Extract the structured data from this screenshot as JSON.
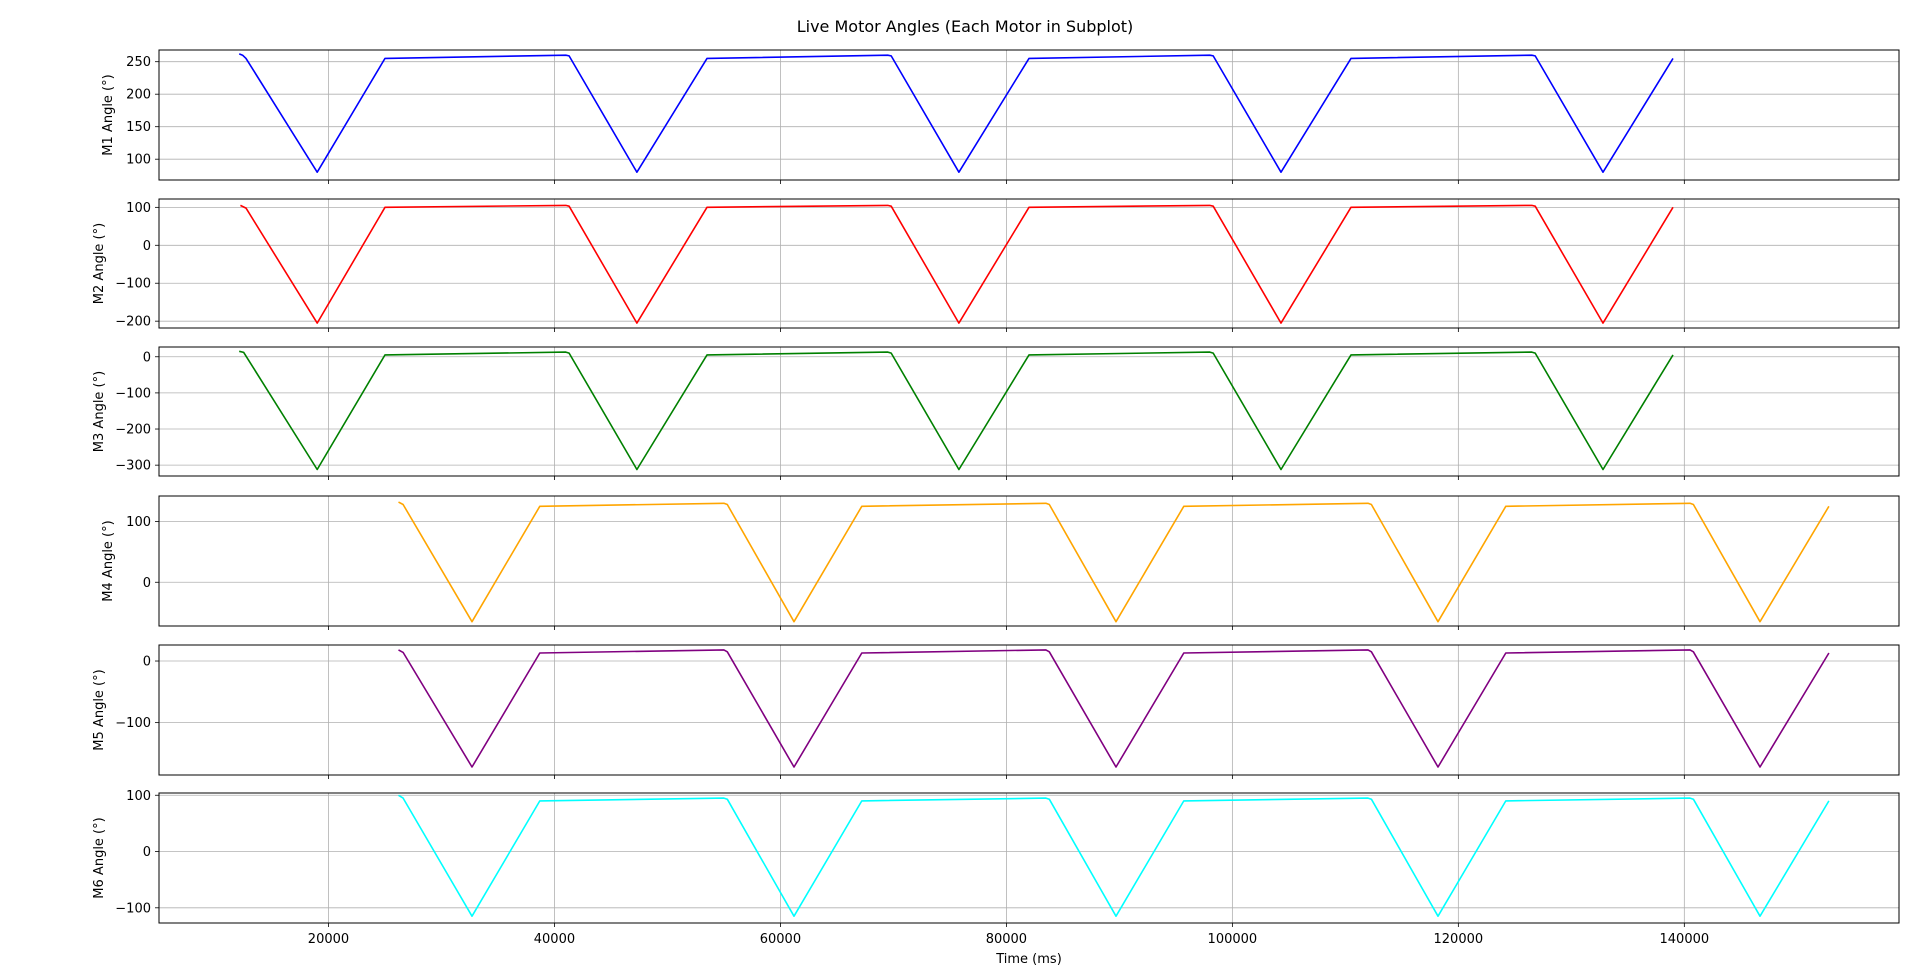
{
  "window": {
    "title": "Live Motor Angles (Each Motor in Subplot)"
  },
  "chart_data": [
    {
      "type": "line",
      "ylabel": "M1 Angle (°)",
      "xlabel": "",
      "color": "#0000ff",
      "xlim": [
        5000,
        159000
      ],
      "ylim": [
        68,
        268
      ],
      "yticks": [
        100,
        150,
        200,
        250
      ],
      "ytick_labels": [
        "100",
        "150",
        "200",
        "250"
      ],
      "xticks": [
        20000,
        40000,
        60000,
        80000,
        100000,
        120000,
        140000
      ],
      "grid": true,
      "series": [
        {
          "x": [
            12100,
            12400,
            12700,
            19000,
            25000,
            41000,
            41300,
            47300,
            53500,
            69500,
            69800,
            75800,
            82000,
            98000,
            98300,
            104300,
            110500,
            126500,
            126800,
            132800,
            139000
          ],
          "values": [
            262,
            260,
            255,
            80,
            255,
            260,
            259,
            80,
            255,
            260,
            259,
            80,
            255,
            260,
            259,
            80,
            255,
            260,
            259,
            80,
            255
          ]
        }
      ]
    },
    {
      "type": "line",
      "ylabel": "M2 Angle (°)",
      "xlabel": "",
      "color": "#ff0000",
      "xlim": [
        5000,
        159000
      ],
      "ylim": [
        -218,
        122
      ],
      "yticks": [
        -200,
        -100,
        0,
        100
      ],
      "ytick_labels": [
        "−200",
        "−100",
        "0",
        "100"
      ],
      "xticks": [
        20000,
        40000,
        60000,
        80000,
        100000,
        120000,
        140000
      ],
      "grid": true,
      "series": [
        {
          "x": [
            12200,
            12700,
            19000,
            25000,
            41000,
            41300,
            47300,
            53500,
            69500,
            69800,
            75800,
            82000,
            98000,
            98300,
            104300,
            110500,
            126500,
            126800,
            132800,
            139000
          ],
          "values": [
            105,
            98,
            -205,
            100,
            105,
            103,
            -205,
            100,
            105,
            103,
            -205,
            100,
            105,
            103,
            -205,
            100,
            105,
            103,
            -205,
            100
          ]
        }
      ]
    },
    {
      "type": "line",
      "ylabel": "M3 Angle (°)",
      "xlabel": "",
      "color": "#008000",
      "xlim": [
        5000,
        159000
      ],
      "ylim": [
        -330,
        27
      ],
      "yticks": [
        -300,
        -200,
        -100,
        0
      ],
      "ytick_labels": [
        "−300",
        "−200",
        "−100",
        "0"
      ],
      "xticks": [
        20000,
        40000,
        60000,
        80000,
        100000,
        120000,
        140000
      ],
      "grid": true,
      "series": [
        {
          "x": [
            12100,
            12500,
            19000,
            25000,
            41000,
            41300,
            47300,
            53500,
            69500,
            69800,
            75800,
            82000,
            98000,
            98300,
            104300,
            110500,
            126500,
            126800,
            132800,
            139000
          ],
          "values": [
            15,
            12,
            -312,
            5,
            13,
            10,
            -312,
            5,
            13,
            10,
            -312,
            5,
            13,
            10,
            -312,
            5,
            13,
            10,
            -312,
            5
          ]
        }
      ]
    },
    {
      "type": "line",
      "ylabel": "M4 Angle (°)",
      "xlabel": "",
      "color": "#ffa500",
      "xlim": [
        5000,
        159000
      ],
      "ylim": [
        -72,
        142
      ],
      "yticks": [
        0,
        100
      ],
      "ytick_labels": [
        "0",
        "100"
      ],
      "xticks": [
        20000,
        40000,
        60000,
        80000,
        100000,
        120000,
        140000
      ],
      "grid": true,
      "series": [
        {
          "x": [
            26200,
            26600,
            32700,
            38700,
            55000,
            55300,
            61200,
            67200,
            83500,
            83800,
            89700,
            95700,
            112000,
            112300,
            118200,
            124200,
            140500,
            140800,
            146700,
            152800
          ],
          "values": [
            132,
            128,
            -65,
            125,
            130,
            128,
            -65,
            125,
            130,
            128,
            -65,
            125,
            130,
            128,
            -65,
            125,
            130,
            128,
            -65,
            125
          ]
        }
      ]
    },
    {
      "type": "line",
      "ylabel": "M5 Angle (°)",
      "xlabel": "",
      "color": "#800080",
      "xlim": [
        5000,
        159000
      ],
      "ylim": [
        -185,
        26
      ],
      "yticks": [
        -100,
        0
      ],
      "ytick_labels": [
        "−100",
        "0"
      ],
      "xticks": [
        20000,
        40000,
        60000,
        80000,
        100000,
        120000,
        140000
      ],
      "grid": true,
      "series": [
        {
          "x": [
            26200,
            26600,
            32700,
            38700,
            55000,
            55300,
            61200,
            67200,
            83500,
            83800,
            89700,
            95700,
            112000,
            112300,
            118200,
            124200,
            140500,
            140800,
            146700,
            152800
          ],
          "values": [
            18,
            14,
            -172,
            13,
            18,
            15,
            -172,
            13,
            18,
            15,
            -172,
            13,
            18,
            15,
            -172,
            13,
            18,
            15,
            -172,
            13
          ]
        }
      ]
    },
    {
      "type": "line",
      "ylabel": "M6 Angle (°)",
      "xlabel": "Time (ms)",
      "color": "#00ffff",
      "xlim": [
        5000,
        159000
      ],
      "ylim": [
        -127,
        104
      ],
      "yticks": [
        -100,
        0,
        100
      ],
      "ytick_labels": [
        "−100",
        "0",
        "100"
      ],
      "xticks": [
        20000,
        40000,
        60000,
        80000,
        100000,
        120000,
        140000
      ],
      "xtick_labels": [
        "20000",
        "40000",
        "60000",
        "80000",
        "100000",
        "120000",
        "140000"
      ],
      "grid": true,
      "series": [
        {
          "x": [
            26200,
            26600,
            32700,
            38700,
            55000,
            55300,
            61200,
            67200,
            83500,
            83800,
            89700,
            95700,
            112000,
            112300,
            118200,
            124200,
            140500,
            140800,
            146700,
            152800
          ],
          "values": [
            100,
            95,
            -115,
            90,
            95,
            93,
            -115,
            90,
            95,
            93,
            -115,
            90,
            95,
            93,
            -115,
            90,
            95,
            93,
            -115,
            90
          ]
        }
      ]
    }
  ]
}
